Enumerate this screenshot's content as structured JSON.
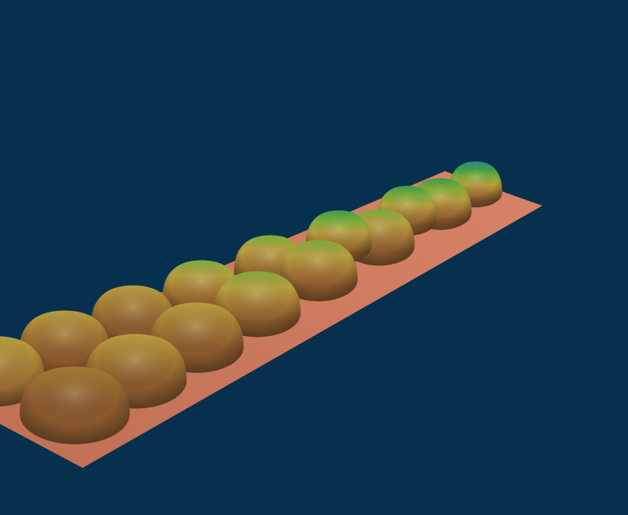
{
  "scene": {
    "background_color": "#06304e",
    "surface_color": "#c8785a",
    "rows": [
      {
        "heights": [
          0.35,
          0.42,
          0.48,
          0.55,
          0.62,
          0.7,
          0.78,
          0.86
        ]
      },
      {
        "heights": [
          0.3,
          0.38,
          0.44,
          0.5,
          0.56,
          0.64,
          0.72
        ]
      }
    ],
    "colormap": [
      "#8a5a2e",
      "#a47a35",
      "#b9a040",
      "#7fae3a",
      "#3e9e4a",
      "#2f8a8a",
      "#3a6aa0"
    ]
  }
}
